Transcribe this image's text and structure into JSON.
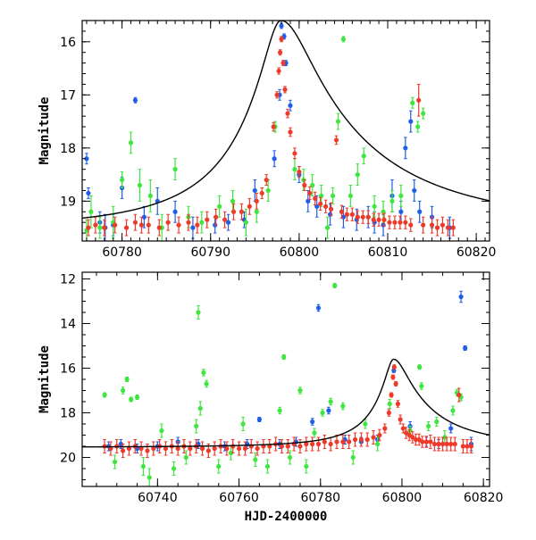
{
  "colors": {
    "blue": "#1f5fe6",
    "green": "#3ee63e",
    "red": "#ee3a2a",
    "model": "#000000",
    "axes": "#000000"
  },
  "chart_data": [
    {
      "type": "scatter",
      "panel": "top",
      "xlabel": "",
      "ylabel": "Magnitude",
      "xlim": [
        60775.5,
        60821.5
      ],
      "ylim": [
        19.75,
        15.6
      ],
      "y_inverted": true,
      "x_ticks": [
        60780,
        60790,
        60800,
        60810,
        60820
      ],
      "x_tick_labels": [
        "60780",
        "60790",
        "60800",
        "60810",
        "60820"
      ],
      "y_ticks": [
        16,
        17,
        18,
        19
      ],
      "y_tick_labels": [
        "16",
        "17",
        "18",
        "19"
      ],
      "model": {
        "name": "",
        "baseline_mag": 19.55,
        "peak_mag": 15.6,
        "peak_time": 60797.95,
        "rise_tau": 1.8,
        "decay_tau": 3.2
      },
      "series": [
        {
          "name": "",
          "color_key": "blue",
          "x": [
            60776.0,
            60776.2,
            60777.5,
            60778.1,
            60779.0,
            60780.0,
            60781.5,
            60782.5,
            60784.0,
            60786.0,
            60788.0,
            60790.5,
            60792.0,
            60793.8,
            60795.0,
            60797.2,
            60797.8,
            60798.0,
            60798.3,
            60798.5,
            60799.0,
            60800.0,
            60801.0,
            60802.0,
            60803.5,
            60805.0,
            60806.5,
            60807.8,
            60808.5,
            60809.5,
            60810.5,
            60811.5,
            60812.0,
            60812.6,
            60813.0,
            60813.6,
            60815.0,
            60817.0
          ],
          "y": [
            18.2,
            18.85,
            19.4,
            19.5,
            19.45,
            18.75,
            17.1,
            19.3,
            19.0,
            19.2,
            19.5,
            19.45,
            19.4,
            19.35,
            18.8,
            18.2,
            17.0,
            15.7,
            15.9,
            16.4,
            17.2,
            18.5,
            19.0,
            19.1,
            19.25,
            19.3,
            19.35,
            19.3,
            19.4,
            19.45,
            18.9,
            19.2,
            18.0,
            17.5,
            18.8,
            19.2,
            19.3,
            19.5
          ],
          "yerr": [
            0.1,
            0.1,
            0.2,
            0.25,
            0.2,
            0.2,
            0.05,
            0.2,
            0.25,
            0.2,
            0.2,
            0.15,
            0.15,
            0.15,
            0.2,
            0.15,
            0.1,
            0.05,
            0.05,
            0.05,
            0.1,
            0.15,
            0.2,
            0.2,
            0.2,
            0.2,
            0.2,
            0.2,
            0.2,
            0.2,
            0.3,
            0.2,
            0.2,
            0.2,
            0.2,
            0.2,
            0.2,
            0.2
          ]
        },
        {
          "name": "",
          "color_key": "green",
          "x": [
            60776.0,
            60776.5,
            60777.5,
            60779.0,
            60780.0,
            60781.0,
            60782.0,
            60783.2,
            60784.5,
            60786.0,
            60787.5,
            60789.0,
            60791.0,
            60792.5,
            60794.0,
            60795.2,
            60796.5,
            60797.3,
            60799.5,
            60800.5,
            60801.5,
            60802.5,
            60803.2,
            60803.8,
            60804.4,
            60805.0,
            60805.8,
            60806.6,
            60807.3,
            60808.5,
            60809.5,
            60810.5,
            60811.5,
            60812.8,
            60813.4,
            60814.0
          ],
          "y": [
            19.55,
            19.2,
            19.5,
            19.4,
            18.6,
            17.9,
            18.7,
            18.9,
            19.5,
            18.4,
            19.3,
            19.4,
            19.1,
            19.0,
            19.4,
            19.2,
            18.8,
            17.6,
            18.4,
            18.6,
            18.7,
            18.9,
            19.5,
            18.9,
            17.5,
            15.95,
            18.9,
            18.5,
            18.15,
            19.1,
            19.2,
            19.0,
            18.9,
            17.15,
            17.6,
            17.35
          ],
          "yerr": [
            0.2,
            0.3,
            0.2,
            0.3,
            0.15,
            0.2,
            0.3,
            0.3,
            0.25,
            0.2,
            0.2,
            0.2,
            0.2,
            0.2,
            0.25,
            0.2,
            0.2,
            0.1,
            0.2,
            0.2,
            0.2,
            0.2,
            0.2,
            0.15,
            0.15,
            0.05,
            0.2,
            0.2,
            0.15,
            0.2,
            0.2,
            0.2,
            0.2,
            0.1,
            0.1,
            0.1
          ]
        },
        {
          "name": "",
          "color_key": "red",
          "x": [
            60776.2,
            60777.0,
            60778.0,
            60779.2,
            60780.5,
            60781.5,
            60782.2,
            60783.0,
            60784.2,
            60785.2,
            60786.4,
            60787.5,
            60788.5,
            60789.6,
            60790.6,
            60791.6,
            60792.6,
            60793.5,
            60794.4,
            60795.2,
            60795.8,
            60796.3,
            60797.1,
            60797.5,
            60797.7,
            60797.85,
            60798.0,
            60798.2,
            60798.4,
            60798.7,
            60799.0,
            60799.5,
            60800.0,
            60800.6,
            60801.2,
            60801.8,
            60802.4,
            60803.0,
            60803.6,
            60804.2,
            60804.8,
            60805.4,
            60806.0,
            60806.6,
            60807.2,
            60807.8,
            60808.4,
            60809.0,
            60809.6,
            60810.2,
            60810.8,
            60811.4,
            60812.0,
            60812.6,
            60813.5,
            60814.0,
            60815.0,
            60815.6,
            60816.2,
            60816.8,
            60817.4
          ],
          "y": [
            19.5,
            19.45,
            19.5,
            19.45,
            19.5,
            19.4,
            19.45,
            19.45,
            19.5,
            19.4,
            19.45,
            19.4,
            19.45,
            19.35,
            19.3,
            19.35,
            19.2,
            19.2,
            19.1,
            19.0,
            18.85,
            18.6,
            17.6,
            17.0,
            16.55,
            16.2,
            15.95,
            16.4,
            16.9,
            17.35,
            17.7,
            18.1,
            18.45,
            18.7,
            18.85,
            18.95,
            19.05,
            19.1,
            19.15,
            17.85,
            19.2,
            19.25,
            19.25,
            19.3,
            19.3,
            19.3,
            19.35,
            19.35,
            19.35,
            19.4,
            19.4,
            19.4,
            19.4,
            19.45,
            17.1,
            19.45,
            19.45,
            19.5,
            19.45,
            19.5,
            19.5
          ],
          "yerr": [
            0.15,
            0.15,
            0.15,
            0.15,
            0.15,
            0.15,
            0.15,
            0.15,
            0.15,
            0.15,
            0.15,
            0.15,
            0.15,
            0.15,
            0.15,
            0.15,
            0.15,
            0.15,
            0.15,
            0.15,
            0.1,
            0.1,
            0.08,
            0.06,
            0.06,
            0.05,
            0.05,
            0.05,
            0.06,
            0.08,
            0.08,
            0.1,
            0.1,
            0.1,
            0.12,
            0.12,
            0.12,
            0.12,
            0.12,
            0.08,
            0.12,
            0.12,
            0.12,
            0.12,
            0.12,
            0.12,
            0.12,
            0.12,
            0.12,
            0.12,
            0.12,
            0.12,
            0.12,
            0.12,
            0.3,
            0.15,
            0.15,
            0.15,
            0.15,
            0.15,
            0.15
          ]
        }
      ]
    },
    {
      "type": "scatter",
      "panel": "bottom",
      "xlabel": "HJD-2400000",
      "ylabel": "Magnitude",
      "xlim": [
        60721.5,
        60821.5
      ],
      "ylim": [
        21.3,
        11.7
      ],
      "y_inverted": true,
      "x_ticks": [
        60740,
        60760,
        60780,
        60800,
        60820
      ],
      "x_tick_labels": [
        "60740",
        "60760",
        "60780",
        "60800",
        "60820"
      ],
      "y_ticks": [
        12,
        14,
        16,
        18,
        20
      ],
      "y_tick_labels": [
        "12",
        "14",
        "16",
        "18",
        "20"
      ],
      "model": {
        "name": "",
        "baseline_mag": 19.55,
        "peak_mag": 15.6,
        "peak_time": 60797.95,
        "rise_tau": 1.8,
        "decay_tau": 3.2
      },
      "series": [
        {
          "name": "",
          "color_key": "blue",
          "x": [
            60728.0,
            60731.0,
            60735.0,
            60740.0,
            60745.0,
            60750.0,
            60756.5,
            60762.0,
            60765.0,
            60770.0,
            60774.0,
            60778.0,
            60779.5,
            60782.0,
            60786.0,
            60790.0,
            60794.0,
            60798.0,
            60802.0,
            60806.0,
            60809.0,
            60812.0,
            60814.5,
            60815.5,
            60817.0
          ],
          "y": [
            19.5,
            19.4,
            19.6,
            19.5,
            19.3,
            19.4,
            19.5,
            19.4,
            18.3,
            19.4,
            19.3,
            18.4,
            13.3,
            17.9,
            19.2,
            19.3,
            19.2,
            16.1,
            18.6,
            19.3,
            19.4,
            18.7,
            12.8,
            15.1,
            19.4
          ],
          "yerr": [
            0.2,
            0.2,
            0.2,
            0.2,
            0.2,
            0.2,
            0.2,
            0.2,
            0.1,
            0.2,
            0.2,
            0.15,
            0.15,
            0.15,
            0.2,
            0.2,
            0.2,
            0.1,
            0.2,
            0.2,
            0.2,
            0.2,
            0.25,
            0.1,
            0.3
          ]
        },
        {
          "name": "",
          "color_key": "green",
          "x": [
            60727.0,
            60729.5,
            60731.5,
            60732.5,
            60733.5,
            60735.0,
            60736.5,
            60738.0,
            60741.0,
            60744.0,
            60747.0,
            60749.5,
            60750.0,
            60750.5,
            60751.3,
            60752.0,
            60755.0,
            60758.0,
            60761.0,
            60764.0,
            60767.0,
            60770.0,
            60771.0,
            60772.5,
            60775.0,
            60776.5,
            60778.5,
            60780.5,
            60782.5,
            60783.5,
            60785.5,
            60788.0,
            60791.0,
            60794.0,
            60797.0,
            60802.0,
            60804.3,
            60804.8,
            60806.5,
            60808.5,
            60810.5,
            60812.5,
            60813.5,
            60814.5
          ],
          "y": [
            17.2,
            20.2,
            17.0,
            16.5,
            17.4,
            17.3,
            20.4,
            20.9,
            18.8,
            20.5,
            20.0,
            18.6,
            13.5,
            17.8,
            16.2,
            16.7,
            20.4,
            19.8,
            18.5,
            20.1,
            20.4,
            17.9,
            15.5,
            20.0,
            17.0,
            20.4,
            18.9,
            18.0,
            17.5,
            12.3,
            17.7,
            20.0,
            18.5,
            19.4,
            17.6,
            18.8,
            15.95,
            16.8,
            18.6,
            18.4,
            19.1,
            17.9,
            17.1,
            17.3
          ],
          "yerr": [
            0.1,
            0.3,
            0.15,
            0.1,
            0.1,
            0.1,
            0.4,
            0.4,
            0.3,
            0.3,
            0.3,
            0.3,
            0.3,
            0.3,
            0.15,
            0.15,
            0.3,
            0.3,
            0.3,
            0.3,
            0.3,
            0.15,
            0.1,
            0.3,
            0.15,
            0.3,
            0.2,
            0.15,
            0.15,
            0.1,
            0.15,
            0.3,
            0.2,
            0.3,
            0.2,
            0.2,
            0.1,
            0.15,
            0.2,
            0.2,
            0.3,
            0.2,
            0.15,
            0.15
          ]
        },
        {
          "name": "",
          "color_key": "red",
          "x": [
            60727.0,
            60728.5,
            60730.0,
            60731.5,
            60733.0,
            60734.5,
            60736.0,
            60737.5,
            60739.0,
            60740.5,
            60742.0,
            60743.5,
            60745.0,
            60746.5,
            60748.0,
            60749.5,
            60751.0,
            60752.5,
            60754.0,
            60755.5,
            60757.0,
            60758.5,
            60760.0,
            60761.5,
            60763.0,
            60764.5,
            60766.0,
            60767.5,
            60769.0,
            60770.5,
            60772.0,
            60773.5,
            60775.0,
            60776.5,
            60778.0,
            60779.5,
            60781.0,
            60782.5,
            60784.0,
            60785.5,
            60787.0,
            60788.5,
            60790.0,
            60791.5,
            60793.0,
            60794.5,
            60795.8,
            60796.8,
            60797.4,
            60797.8,
            60798.1,
            60798.5,
            60799.0,
            60799.6,
            60800.3,
            60801.0,
            60801.8,
            60802.6,
            60803.4,
            60804.2,
            60805.0,
            60806.0,
            60807.0,
            60808.0,
            60809.0,
            60810.0,
            60811.0,
            60812.0,
            60813.0,
            60814.0,
            60815.0,
            60816.0,
            60817.0
          ],
          "y": [
            19.5,
            19.6,
            19.5,
            19.7,
            19.6,
            19.5,
            19.6,
            19.7,
            19.6,
            19.5,
            19.6,
            19.5,
            19.6,
            19.5,
            19.6,
            19.5,
            19.6,
            19.7,
            19.6,
            19.5,
            19.6,
            19.5,
            19.6,
            19.6,
            19.5,
            19.6,
            19.5,
            19.5,
            19.4,
            19.5,
            19.5,
            19.4,
            19.5,
            19.4,
            19.4,
            19.4,
            19.3,
            19.4,
            19.3,
            19.3,
            19.3,
            19.2,
            19.2,
            19.2,
            19.1,
            19.0,
            18.7,
            18.0,
            17.2,
            16.4,
            15.95,
            16.7,
            17.6,
            18.3,
            18.7,
            18.9,
            19.0,
            19.1,
            19.2,
            19.2,
            19.3,
            19.3,
            19.3,
            19.4,
            19.4,
            19.4,
            19.4,
            19.4,
            19.4,
            17.2,
            19.5,
            19.5,
            19.5
          ],
          "yerr": [
            0.3,
            0.3,
            0.3,
            0.3,
            0.3,
            0.3,
            0.3,
            0.3,
            0.3,
            0.3,
            0.3,
            0.3,
            0.3,
            0.3,
            0.3,
            0.3,
            0.3,
            0.3,
            0.3,
            0.3,
            0.3,
            0.3,
            0.3,
            0.3,
            0.3,
            0.3,
            0.3,
            0.3,
            0.3,
            0.3,
            0.3,
            0.3,
            0.3,
            0.3,
            0.3,
            0.3,
            0.3,
            0.3,
            0.3,
            0.3,
            0.3,
            0.3,
            0.3,
            0.3,
            0.3,
            0.25,
            0.2,
            0.15,
            0.1,
            0.1,
            0.1,
            0.1,
            0.15,
            0.2,
            0.2,
            0.25,
            0.25,
            0.25,
            0.25,
            0.25,
            0.25,
            0.25,
            0.3,
            0.3,
            0.3,
            0.3,
            0.3,
            0.3,
            0.3,
            0.3,
            0.3,
            0.3,
            0.3
          ]
        }
      ]
    }
  ]
}
